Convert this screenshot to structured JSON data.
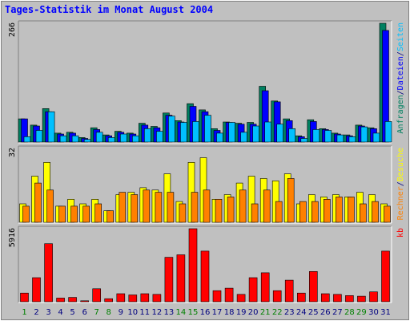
{
  "chart_data": {
    "type": "bar",
    "title": "Tages-Statistik im Monat August 2004",
    "categories": [
      "1",
      "2",
      "3",
      "4",
      "5",
      "6",
      "7",
      "8",
      "9",
      "10",
      "11",
      "12",
      "13",
      "14",
      "15",
      "16",
      "17",
      "18",
      "19",
      "20",
      "21",
      "22",
      "23",
      "24",
      "25",
      "26",
      "27",
      "28",
      "29",
      "30",
      "31"
    ],
    "weekend_days": [
      "1",
      "7",
      "8",
      "14",
      "15",
      "21",
      "22",
      "28",
      "29"
    ],
    "panels": [
      {
        "name": "top",
        "max_label": "266",
        "ylim": [
          0,
          266
        ],
        "right_labels": [
          {
            "text": "Anfragen",
            "color": "#008060"
          },
          {
            "text": "/",
            "color": "#000080"
          },
          {
            "text": "Dateien",
            "color": "#0000ff"
          },
          {
            "text": "/",
            "color": "#000080"
          },
          {
            "text": "Seiten",
            "color": "#00c0ff"
          }
        ],
        "series": [
          {
            "name": "Anfragen",
            "color": "#008060",
            "values": [
              52,
              38,
              75,
              20,
              22,
              10,
              32,
              16,
              24,
              20,
              42,
              35,
              65,
              48,
              86,
              72,
              30,
              45,
              42,
              44,
              125,
              92,
              52,
              14,
              50,
              30,
              20,
              16,
              38,
              32,
              266
            ]
          },
          {
            "name": "Dateien",
            "color": "#0000ff",
            "values": [
              52,
              36,
              68,
              18,
              20,
              8,
              28,
              14,
              22,
              18,
              38,
              32,
              60,
              45,
              80,
              68,
              26,
              44,
              40,
              40,
              115,
              90,
              48,
              12,
              46,
              28,
              18,
              14,
              36,
              30,
              250
            ]
          },
          {
            "name": "Seiten",
            "color": "#00c0ff",
            "values": [
              12,
              26,
              68,
              14,
              14,
              6,
              22,
              10,
              18,
              14,
              30,
              24,
              58,
              44,
              46,
              60,
              20,
              44,
              22,
              36,
              45,
              40,
              30,
              8,
              28,
              26,
              16,
              12,
              34,
              20,
              46
            ]
          }
        ]
      },
      {
        "name": "middle",
        "max_label": "32",
        "ylim": [
          0,
          32
        ],
        "right_labels": [
          {
            "text": "Rechner",
            "color": "#ff8000"
          },
          {
            "text": "/",
            "color": "#000080"
          },
          {
            "text": "Besuche",
            "color": "#ffff00"
          }
        ],
        "series": [
          {
            "name": "Besuche",
            "color": "#ffff00",
            "values": [
              8,
              20,
              26,
              7,
              10,
              8,
              10,
              5,
              12,
              13,
              15,
              14,
              21,
              9,
              26,
              28,
              10,
              12,
              17,
              20,
              19,
              18,
              21,
              8,
              12,
              11,
              12,
              11,
              13,
              12,
              8
            ]
          },
          {
            "name": "Rechner",
            "color": "#ff8000",
            "values": [
              7,
              17,
              14,
              7,
              7,
              7,
              8,
              5,
              13,
              12,
              14,
              13,
              13,
              8,
              13,
              14,
              10,
              11,
              14,
              8,
              14,
              9,
              19,
              9,
              9,
              10,
              11,
              11,
              8,
              9,
              7
            ]
          }
        ]
      },
      {
        "name": "bottom",
        "max_label": "5916",
        "ylim": [
          0,
          5916
        ],
        "right_labels": [
          {
            "text": "kb",
            "color": "#ff0000"
          }
        ],
        "series": [
          {
            "name": "kb",
            "color": "#ff0000",
            "values": [
              700,
              1950,
              4700,
              300,
              350,
              80,
              1050,
              250,
              650,
              550,
              650,
              600,
              3600,
              3800,
              5916,
              4100,
              900,
              1100,
              600,
              1950,
              2350,
              900,
              1750,
              700,
              2450,
              650,
              600,
              500,
              450,
              800,
              4100
            ]
          }
        ]
      }
    ]
  },
  "colors": {
    "background": "#c0c0c0",
    "title": "#0000ff",
    "weekend_label": "#008000",
    "weekday_label": "#000080",
    "border_dark": "#808080",
    "border_light": "#ffffff"
  }
}
